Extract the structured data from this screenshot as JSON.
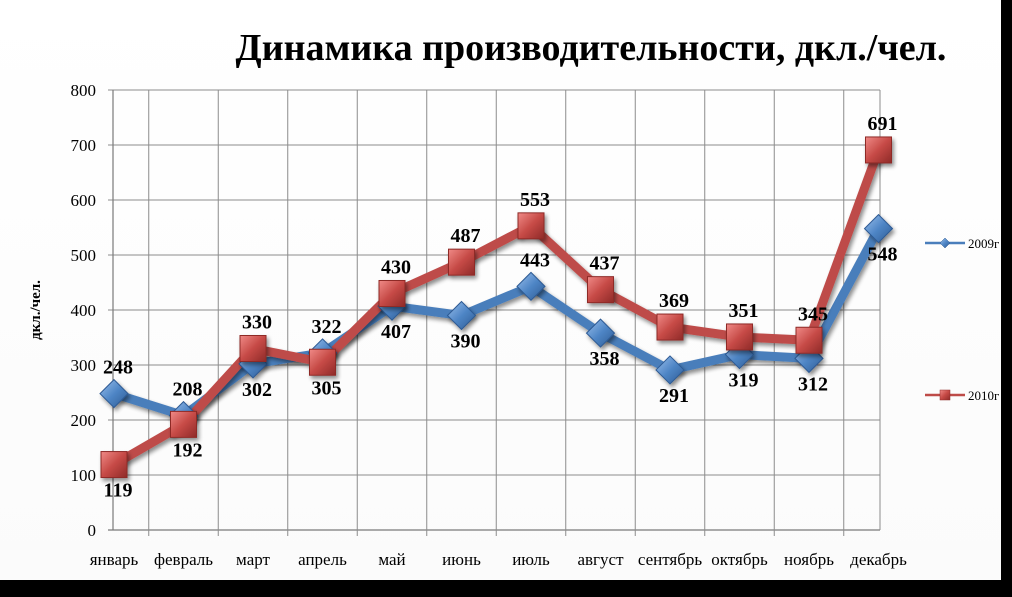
{
  "chart_data": {
    "type": "line",
    "title": "Динамика производительности, дкл./чел.",
    "xlabel": "",
    "ylabel": "дкл./чел.",
    "ylim": [
      0,
      800
    ],
    "yticks": [
      0,
      100,
      200,
      300,
      400,
      500,
      600,
      700,
      800
    ],
    "grid": true,
    "legend_position": "right",
    "categories": [
      "январь",
      "февраль",
      "март",
      "апрель",
      "май",
      "июнь",
      "июль",
      "август",
      "сентябрь",
      "октябрь",
      "ноябрь",
      "декабрь"
    ],
    "series": [
      {
        "name": "2009г",
        "color": "#4a7ebb",
        "marker": "diamond",
        "values": [
          248,
          208,
          302,
          322,
          407,
          390,
          443,
          358,
          291,
          319,
          312,
          548
        ],
        "label_side": [
          "above",
          "above",
          "below",
          "above",
          "below",
          "below",
          "above",
          "below",
          "below",
          "below",
          "below",
          "below"
        ]
      },
      {
        "name": "2010г",
        "color": "#be4b48",
        "marker": "square",
        "values": [
          119,
          192,
          330,
          305,
          430,
          487,
          553,
          437,
          369,
          351,
          345,
          691
        ],
        "label_side": [
          "below",
          "below",
          "above",
          "below",
          "above",
          "above",
          "above",
          "above",
          "above",
          "above",
          "above",
          "above"
        ]
      }
    ]
  }
}
